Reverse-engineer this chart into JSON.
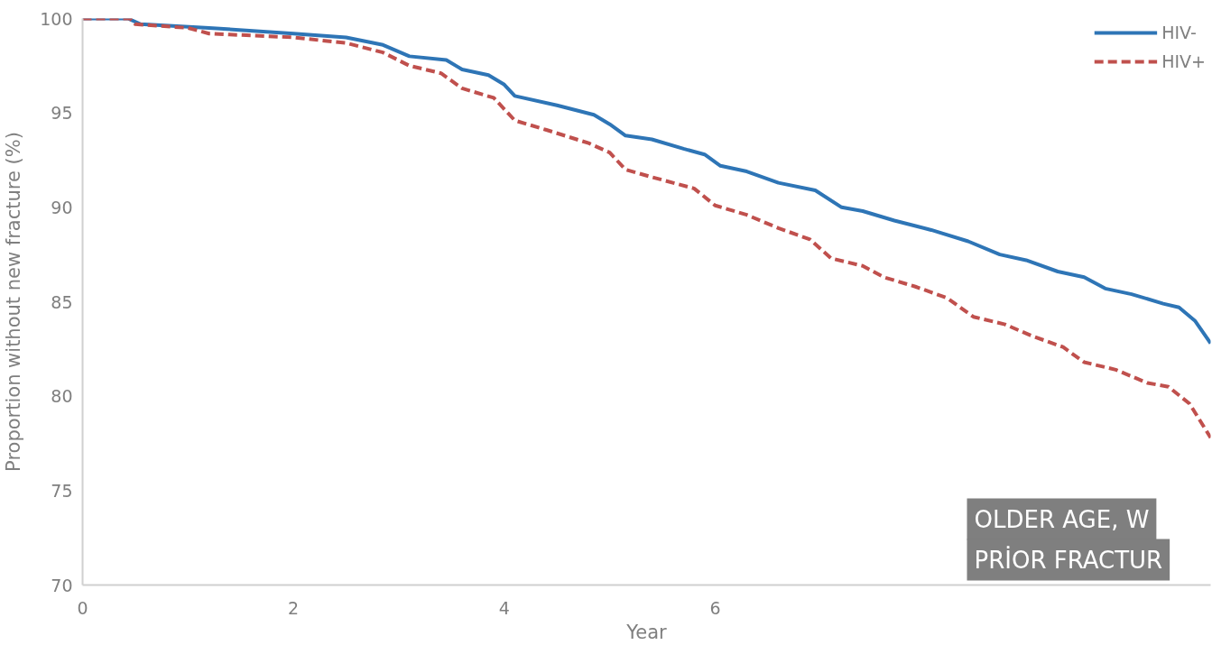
{
  "chart_data": {
    "type": "line",
    "xlabel": "Year",
    "ylabel": "Proportion without new fracture (%)",
    "xlim": [
      0,
      10.7
    ],
    "xticks": [
      0,
      2,
      4,
      6
    ],
    "ylim": [
      70,
      100
    ],
    "yticks": [
      70,
      75,
      80,
      85,
      90,
      95,
      100
    ],
    "grid": false,
    "legend": "top right",
    "marker": "none",
    "series": [
      {
        "name": "HIV-",
        "color": "#2e75b6",
        "line_style": "solid",
        "x": [
          0,
          0.43,
          0.55,
          1.2,
          2.0,
          2.5,
          2.85,
          3.1,
          3.45,
          3.6,
          3.85,
          4.0,
          4.1,
          4.5,
          4.85,
          5.0,
          5.15,
          5.4,
          5.7,
          5.9,
          6.05,
          6.3,
          6.6,
          6.95,
          7.2,
          7.4,
          7.7,
          8.05,
          8.4,
          8.7,
          8.95,
          9.25,
          9.5,
          9.7,
          9.95,
          10.25,
          10.4,
          10.55,
          10.7
        ],
        "values": [
          100,
          100,
          99.7,
          99.5,
          99.2,
          99.0,
          98.6,
          98.0,
          97.8,
          97.3,
          97.0,
          96.5,
          95.9,
          95.4,
          94.9,
          94.4,
          93.8,
          93.6,
          93.1,
          92.8,
          92.2,
          91.9,
          91.3,
          90.9,
          90.0,
          89.8,
          89.3,
          88.8,
          88.2,
          87.5,
          87.2,
          86.6,
          86.3,
          85.7,
          85.4,
          84.9,
          84.7,
          84.0,
          82.8
        ]
      },
      {
        "name": "HIV+",
        "color": "#c0504d",
        "line_style": "dashed",
        "x": [
          0,
          0.45,
          0.5,
          1.0,
          1.2,
          2.0,
          2.5,
          2.85,
          3.1,
          3.4,
          3.6,
          3.9,
          4.1,
          4.4,
          4.8,
          5.0,
          5.15,
          5.4,
          5.8,
          6.0,
          6.3,
          6.6,
          6.9,
          7.1,
          7.4,
          7.6,
          7.9,
          8.2,
          8.45,
          8.75,
          9.0,
          9.3,
          9.5,
          9.8,
          10.1,
          10.3,
          10.5,
          10.7
        ],
        "values": [
          100,
          100,
          99.7,
          99.5,
          99.2,
          99.0,
          98.7,
          98.2,
          97.5,
          97.1,
          96.3,
          95.8,
          94.6,
          94.1,
          93.4,
          92.9,
          92.0,
          91.6,
          91.0,
          90.1,
          89.6,
          88.9,
          88.3,
          87.3,
          86.9,
          86.3,
          85.8,
          85.2,
          84.2,
          83.8,
          83.2,
          82.6,
          81.8,
          81.4,
          80.7,
          80.5,
          79.6,
          77.8
        ]
      }
    ],
    "annotations": [
      "OLDER AGE, W",
      "PRİOR FRACTUR"
    ]
  }
}
